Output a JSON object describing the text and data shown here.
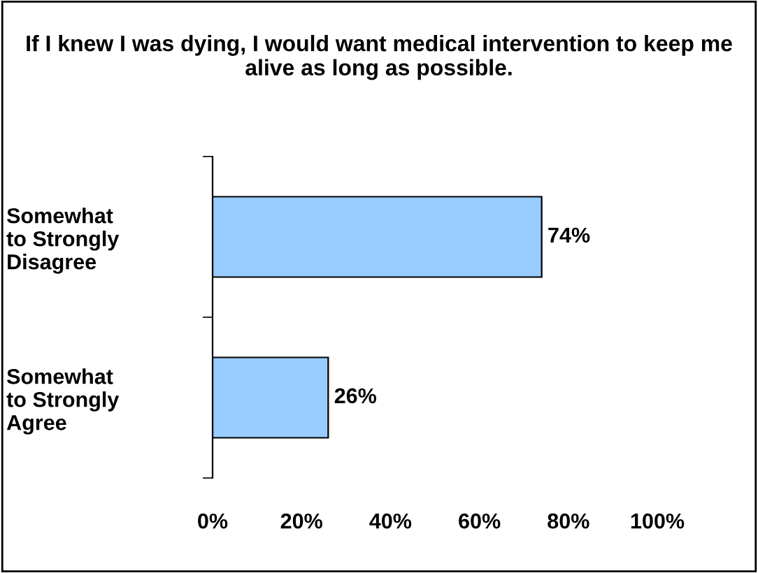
{
  "chart_data": {
    "type": "bar",
    "orientation": "horizontal",
    "title": "If I knew I was dying, I would want medical intervention to keep me alive as long as possible.",
    "categories": [
      "Somewhat\nto Strongly\nDisagree",
      "Somewhat\nto Strongly\nAgree"
    ],
    "values": [
      74,
      26
    ],
    "value_labels": [
      "74%",
      "26%"
    ],
    "color": "#99ccff",
    "xlim": [
      0,
      100
    ],
    "xticks": [
      {
        "value": 0,
        "label": "0%"
      },
      {
        "value": 20,
        "label": "20%"
      },
      {
        "value": 40,
        "label": "40%"
      },
      {
        "value": 60,
        "label": "60%"
      },
      {
        "value": 80,
        "label": "80%"
      },
      {
        "value": 100,
        "label": "100%"
      }
    ],
    "grid": false,
    "legend": false
  }
}
